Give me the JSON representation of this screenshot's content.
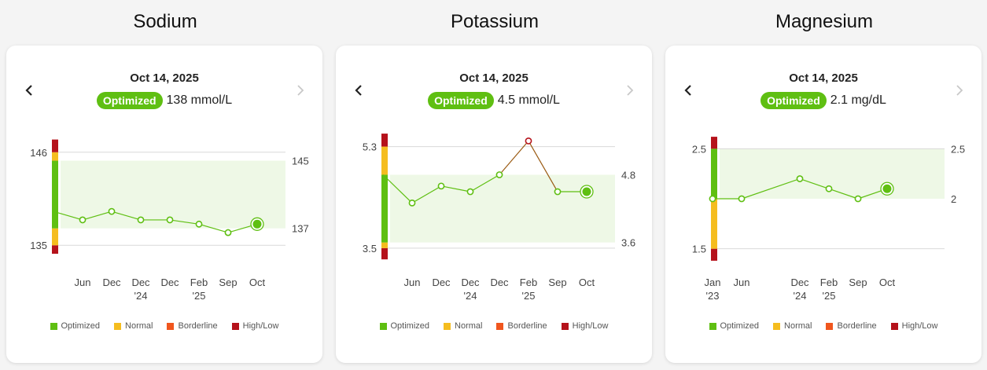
{
  "chart_data": [
    {
      "type": "line",
      "title": "Sodium",
      "date": "Oct 14, 2025",
      "status": "Optimized",
      "reading": "138 mmol/L",
      "ylim": [
        134,
        147
      ],
      "y_ticks_left": [
        "146",
        "135"
      ],
      "y_ticks_left_values": [
        146,
        135
      ],
      "y_ticks_right": [
        "145",
        "137"
      ],
      "y_ticks_right_values": [
        145,
        137
      ],
      "optimal_range": [
        137,
        145
      ],
      "bar_segments": [
        {
          "from": 134,
          "to": 135,
          "color": "#b5121b"
        },
        {
          "from": 135,
          "to": 137,
          "color": "#f5bd1f"
        },
        {
          "from": 137,
          "to": 145,
          "color": "#5fbf12"
        },
        {
          "from": 145,
          "to": 146,
          "color": "#f5bd1f"
        },
        {
          "from": 146,
          "to": 147.5,
          "color": "#b5121b"
        }
      ],
      "x_labels": [
        [
          "",
          ""
        ],
        [
          "Jun",
          ""
        ],
        [
          "Dec",
          ""
        ],
        [
          "Dec",
          "'24"
        ],
        [
          "Dec",
          ""
        ],
        [
          "Feb",
          "'25"
        ],
        [
          "Sep",
          ""
        ],
        [
          "Oct",
          ""
        ]
      ],
      "values": [
        139,
        138,
        139,
        138,
        138,
        137.5,
        136.5,
        137.5
      ],
      "marker_colors": [
        "none",
        "#5fbf12",
        "#5fbf12",
        "#5fbf12",
        "#5fbf12",
        "#5fbf12",
        "#5fbf12",
        "#5fbf12"
      ]
    },
    {
      "type": "line",
      "title": "Potassium",
      "date": "Oct 14, 2025",
      "status": "Optimized",
      "reading": "4.5 mmol/L",
      "ylim": [
        3.4,
        5.35
      ],
      "y_ticks_left": [
        "5.3",
        "3.5"
      ],
      "y_ticks_left_values": [
        5.3,
        3.5
      ],
      "y_ticks_right": [
        "4.8",
        "3.6"
      ],
      "y_ticks_right_values": [
        4.8,
        3.6
      ],
      "optimal_range": [
        3.6,
        4.8
      ],
      "bar_segments": [
        {
          "from": 3.3,
          "to": 3.5,
          "color": "#b5121b"
        },
        {
          "from": 3.5,
          "to": 3.6,
          "color": "#f5bd1f"
        },
        {
          "from": 3.6,
          "to": 4.8,
          "color": "#5fbf12"
        },
        {
          "from": 4.8,
          "to": 5.3,
          "color": "#f5bd1f"
        },
        {
          "from": 5.3,
          "to": 5.53,
          "color": "#b5121b"
        }
      ],
      "x_labels": [
        [
          "",
          ""
        ],
        [
          "Jun",
          ""
        ],
        [
          "Dec",
          ""
        ],
        [
          "Dec",
          "'24"
        ],
        [
          "Dec",
          ""
        ],
        [
          "Feb",
          "'25"
        ],
        [
          "Sep",
          ""
        ],
        [
          "Oct",
          ""
        ]
      ],
      "values": [
        4.8,
        4.3,
        4.6,
        4.5,
        4.8,
        5.4,
        4.5,
        4.5
      ],
      "marker_colors": [
        "none",
        "#5fbf12",
        "#5fbf12",
        "#5fbf12",
        "#5fbf12",
        "#b5121b",
        "#5fbf12",
        "#5fbf12"
      ]
    },
    {
      "type": "line",
      "title": "Magnesium",
      "date": "Oct 14, 2025",
      "status": "Optimized",
      "reading": "2.1 mg/dL",
      "ylim": [
        1.45,
        2.55
      ],
      "y_ticks_left": [
        "2.5",
        "1.5"
      ],
      "y_ticks_left_values": [
        2.5,
        1.5
      ],
      "y_ticks_right": [
        "2.5",
        "2"
      ],
      "y_ticks_right_values": [
        2.5,
        2
      ],
      "optimal_range": [
        2,
        2.5
      ],
      "bar_segments": [
        {
          "from": 1.38,
          "to": 1.5,
          "color": "#b5121b"
        },
        {
          "from": 1.5,
          "to": 2.0,
          "color": "#f5bd1f"
        },
        {
          "from": 2.0,
          "to": 2.5,
          "color": "#5fbf12"
        },
        {
          "from": 2.5,
          "to": 2.62,
          "color": "#b5121b"
        }
      ],
      "x_labels": [
        [
          "Jan",
          "'23"
        ],
        [
          "Jun",
          ""
        ],
        [
          "Dec",
          "'24"
        ],
        [
          "Feb",
          "'25"
        ],
        [
          "Sep",
          ""
        ],
        [
          "Oct",
          ""
        ]
      ],
      "x_positions": [
        0,
        1,
        3,
        4,
        5,
        6
      ],
      "x_count": 7,
      "values": [
        2.0,
        2.0,
        2.2,
        2.1,
        2.0,
        2.1
      ],
      "marker_colors": [
        "#5fbf12",
        "#5fbf12",
        "#5fbf12",
        "#5fbf12",
        "#5fbf12",
        "#5fbf12"
      ]
    }
  ],
  "legend": [
    {
      "label": "Optimized",
      "color": "#5fbf12"
    },
    {
      "label": "Normal",
      "color": "#f5bd1f"
    },
    {
      "label": "Borderline",
      "color": "#f0561e"
    },
    {
      "label": "High/Low",
      "color": "#b5121b"
    }
  ],
  "colors": {
    "line": "#5fbf12",
    "line_high": "#9a5a12",
    "band": "#eef8e6",
    "grid": "#d9d9d9",
    "nav_disabled": "#c8c8c8",
    "nav_enabled": "#222222"
  }
}
